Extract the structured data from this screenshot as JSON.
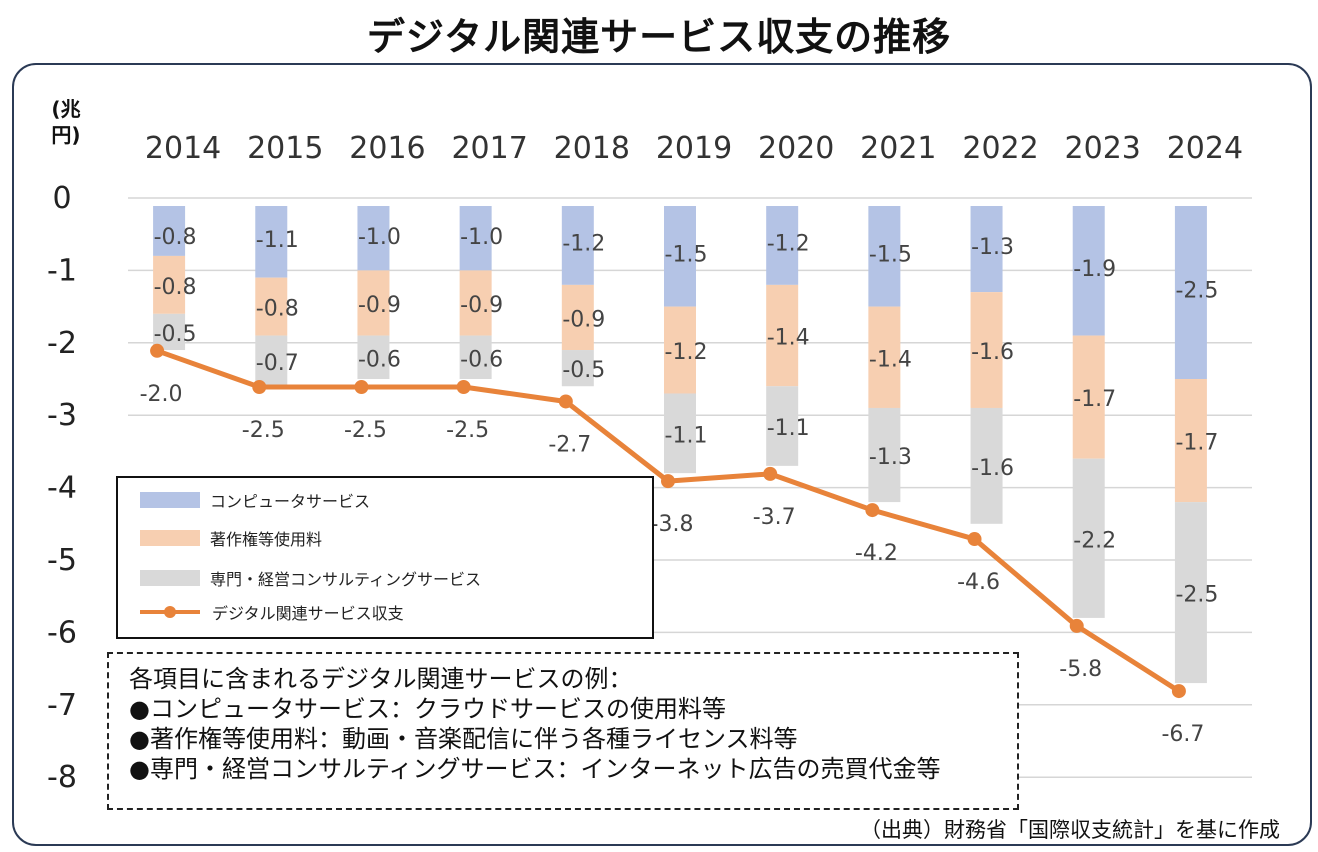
{
  "title": "デジタル関連サービス収支の推移",
  "colors": {
    "computer": "#b4c3e5",
    "copyright": "#f7cfb1",
    "consulting": "#d9d9d9",
    "line": "#e8833a",
    "grid": "#d6d6d6"
  },
  "chart_data": {
    "type": "bar",
    "stacked": true,
    "ylabel": "(兆円)",
    "ylim": [
      -8,
      0
    ],
    "yticks": [
      0,
      -1,
      -2,
      -3,
      -4,
      -5,
      -6,
      -7,
      -8
    ],
    "x_axis_position": "top",
    "grid": true,
    "categories": [
      "2014",
      "2015",
      "2016",
      "2017",
      "2018",
      "2019",
      "2020",
      "2021",
      "2022",
      "2023",
      "2024"
    ],
    "series": [
      {
        "name": "コンピュータサービス",
        "type": "bar",
        "values": [
          -0.8,
          -1.1,
          -1.0,
          -1.0,
          -1.2,
          -1.5,
          -1.2,
          -1.5,
          -1.3,
          -1.9,
          -2.5
        ]
      },
      {
        "name": "著作権等使用料",
        "type": "bar",
        "values": [
          -0.8,
          -0.8,
          -0.9,
          -0.9,
          -0.9,
          -1.2,
          -1.4,
          -1.4,
          -1.6,
          -1.7,
          -1.7
        ]
      },
      {
        "name": "専門・経営コンサルティングサービス",
        "type": "bar",
        "values": [
          -0.5,
          -0.7,
          -0.6,
          -0.6,
          -0.5,
          -1.1,
          -1.1,
          -1.3,
          -1.6,
          -2.2,
          -2.5
        ]
      },
      {
        "name": "デジタル関連サービス収支",
        "type": "line",
        "values": [
          -2.0,
          -2.5,
          -2.5,
          -2.5,
          -2.7,
          -3.8,
          -3.7,
          -4.2,
          -4.6,
          -5.8,
          -6.7
        ]
      }
    ],
    "legend_position": "bottom-left"
  },
  "examples": {
    "heading": "各項目に含まれるデジタル関連サービスの例：",
    "items": [
      "●コンピュータサービス：クラウドサービスの使用料等",
      "●著作権等使用料：動画・音楽配信に伴う各種ライセンス料等",
      "●専門・経営コンサルティングサービス：インターネット広告の売買代金等"
    ]
  },
  "source": "（出典）財務省「国際収支統計」を基に作成"
}
